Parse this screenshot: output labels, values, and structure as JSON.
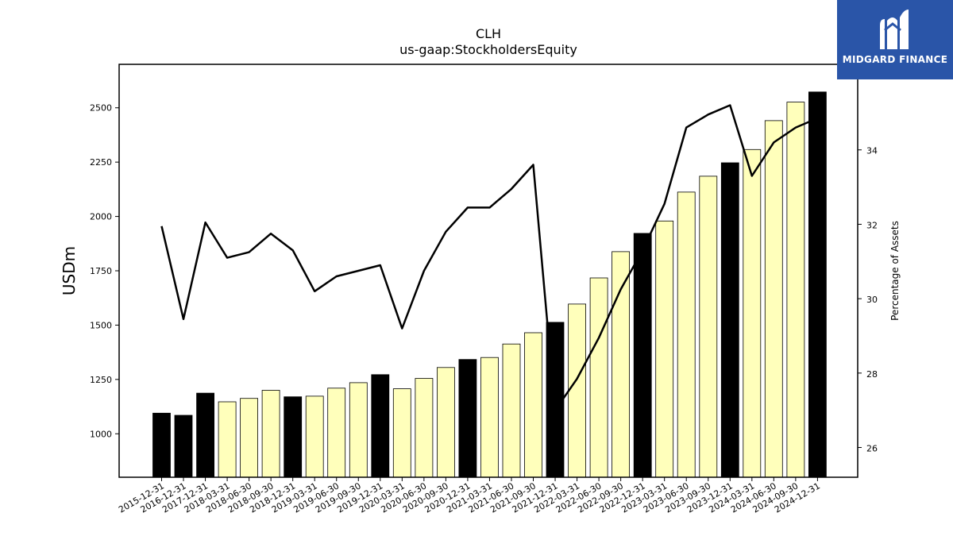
{
  "chart_data": {
    "type": "bar",
    "title": "CLH",
    "subtitle": "us-gaap:StockholdersEquity",
    "ylabel": "USDm",
    "y2label": "Percentage of Assets",
    "ylim": [
      800,
      2700
    ],
    "y2lim": [
      25.2,
      36.3
    ],
    "yticks": [
      1000,
      1250,
      1500,
      1750,
      2000,
      2250,
      2500
    ],
    "y2ticks": [
      26,
      28,
      30,
      32,
      34
    ],
    "categories": [
      "2015-12-31",
      "2016-12-31",
      "2017-12-31",
      "2018-03-31",
      "2018-06-30",
      "2018-09-30",
      "2018-12-31",
      "2019-03-31",
      "2019-06-30",
      "2019-09-30",
      "2019-12-31",
      "2020-03-31",
      "2020-06-30",
      "2020-09-30",
      "2020-12-31",
      "2021-03-31",
      "2021-06-30",
      "2021-09-30",
      "2021-12-31",
      "2022-03-31",
      "2022-06-30",
      "2022-09-30",
      "2022-12-31",
      "2023-03-31",
      "2023-06-30",
      "2023-09-30",
      "2023-12-31",
      "2024-03-31",
      "2024-06-30",
      "2024-09-30",
      "2024-12-31"
    ],
    "series": [
      {
        "type": "bar",
        "values": [
          1095,
          1085,
          1187,
          1147,
          1163,
          1200,
          1170,
          1173,
          1210,
          1235,
          1272,
          1207,
          1255,
          1305,
          1342,
          1351,
          1413,
          1465,
          1513,
          1597,
          1717,
          1838,
          1922,
          1979,
          2112,
          2185,
          2247,
          2308,
          2441,
          2526,
          2573
        ],
        "annual": [
          true,
          true,
          true,
          false,
          false,
          false,
          true,
          false,
          false,
          false,
          true,
          false,
          false,
          false,
          true,
          false,
          false,
          false,
          true,
          false,
          false,
          false,
          true,
          false,
          false,
          false,
          true,
          false,
          false,
          false,
          true
        ]
      },
      {
        "type": "line",
        "axis": "right",
        "values": [
          31.95,
          29.45,
          32.05,
          31.1,
          31.25,
          31.75,
          31.3,
          30.2,
          30.6,
          30.75,
          30.9,
          29.2,
          30.75,
          31.8,
          32.45,
          32.45,
          32.95,
          33.6,
          27.0,
          27.85,
          28.95,
          30.25,
          31.3,
          32.55,
          34.6,
          34.95,
          35.2,
          33.3,
          34.2,
          34.6,
          34.85
        ]
      }
    ],
    "colors": {
      "annual_bar": "#000000",
      "quarter_bar": "#ffffbb",
      "line": "#000000",
      "logo_bg": "#2a55a8"
    }
  },
  "logo": {
    "text": "MIDGARD FINANCE",
    "icon": "midgard-m-logo-icon"
  }
}
